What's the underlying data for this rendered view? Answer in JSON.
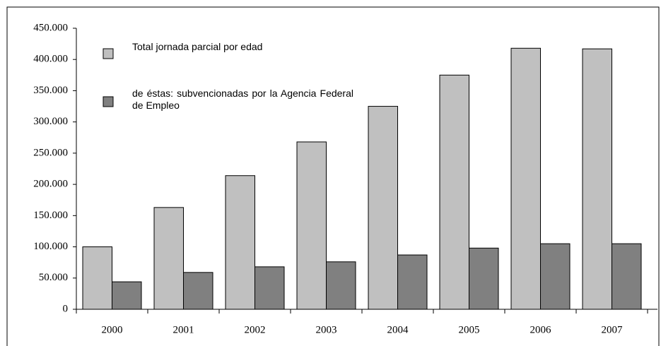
{
  "chart_data": {
    "type": "bar",
    "categories": [
      "2000",
      "2001",
      "2002",
      "2003",
      "2004",
      "2005",
      "2006",
      "2007"
    ],
    "series": [
      {
        "name": "Total jornada parcial por edad",
        "color": "#c0c0c0",
        "values": [
          100000,
          163000,
          214000,
          268000,
          325000,
          375000,
          418000,
          417000
        ]
      },
      {
        "name": "de éstas: subvencionadas por la Agencia Federal de Empleo",
        "color": "#808080",
        "values": [
          44000,
          59000,
          68000,
          76000,
          87000,
          98000,
          105000,
          105000
        ]
      }
    ],
    "ylim": [
      0,
      450000
    ],
    "yticks": [
      0,
      {
        "value": 50000,
        "label": "50.000"
      },
      {
        "value": 100000,
        "label": "100.000"
      },
      {
        "value": 150000,
        "label": "150.000"
      },
      {
        "value": 200000,
        "label": "200.000"
      },
      {
        "value": 250000,
        "label": "250.000"
      },
      {
        "value": 300000,
        "label": "300.000"
      },
      {
        "value": 350000,
        "label": "350.000"
      },
      {
        "value": 400000,
        "label": "400.000"
      },
      {
        "value": 450000,
        "label": "450.000"
      }
    ],
    "grid": false
  }
}
